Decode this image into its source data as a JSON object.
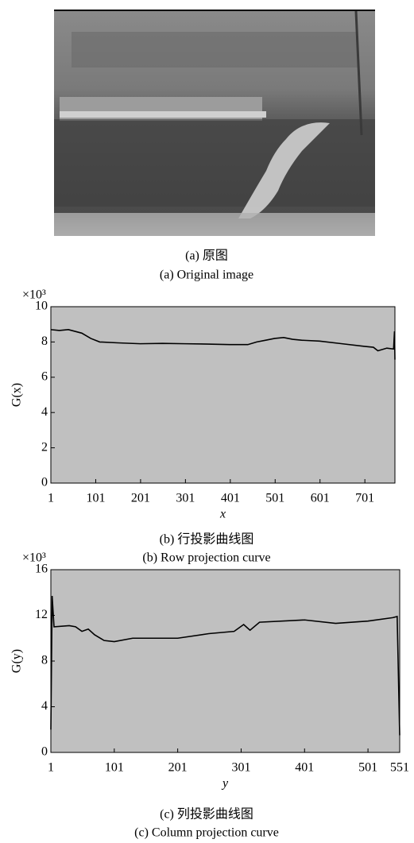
{
  "image": {
    "caption_cn": "(a) 原图",
    "caption_en": "(a) Original image"
  },
  "chart_data": [
    {
      "type": "line",
      "caption_cn": "(b) 行投影曲线图",
      "caption_en": "(b) Row projection curve",
      "multiplier": "×10³",
      "xlabel": "x",
      "ylabel": "G(x)",
      "color": "#000000",
      "background": "#c0c0c0",
      "x": [
        1,
        20,
        40,
        55,
        70,
        90,
        110,
        150,
        200,
        250,
        300,
        350,
        400,
        440,
        460,
        480,
        500,
        520,
        540,
        560,
        600,
        650,
        700,
        720,
        730,
        750,
        765,
        767,
        768
      ],
      "values": [
        8.7,
        8.65,
        8.7,
        8.6,
        8.5,
        8.2,
        8.0,
        7.95,
        7.9,
        7.92,
        7.9,
        7.88,
        7.85,
        7.85,
        8.0,
        8.1,
        8.2,
        8.25,
        8.15,
        8.1,
        8.05,
        7.9,
        7.75,
        7.7,
        7.5,
        7.65,
        7.6,
        8.6,
        7.0
      ],
      "xlim": [
        1,
        768
      ],
      "xticks": [
        1,
        101,
        201,
        301,
        401,
        501,
        601,
        701
      ],
      "ylim": [
        0,
        10
      ],
      "yticks": [
        0,
        2,
        4,
        6,
        8,
        10
      ]
    },
    {
      "type": "line",
      "caption_cn": "(c) 列投影曲线图",
      "caption_en": "(c) Column projection curve",
      "multiplier": "×10³",
      "xlabel": "y",
      "ylabel": "G(y)",
      "color": "#000000",
      "background": "#c0c0c0",
      "x": [
        1,
        3,
        6,
        30,
        40,
        50,
        60,
        70,
        85,
        101,
        130,
        201,
        250,
        290,
        305,
        315,
        330,
        401,
        450,
        501,
        540,
        547,
        551
      ],
      "values": [
        2,
        13.7,
        11.0,
        11.1,
        11.0,
        10.6,
        10.8,
        10.3,
        9.8,
        9.7,
        10.0,
        10.0,
        10.4,
        10.6,
        11.2,
        10.7,
        11.4,
        11.6,
        11.3,
        11.5,
        11.8,
        11.9,
        1.5
      ],
      "xlim": [
        1,
        551
      ],
      "xticks": [
        1,
        101,
        201,
        301,
        401,
        501,
        551
      ],
      "ylim": [
        0,
        16
      ],
      "yticks": [
        0,
        4,
        8,
        12,
        16
      ]
    }
  ]
}
